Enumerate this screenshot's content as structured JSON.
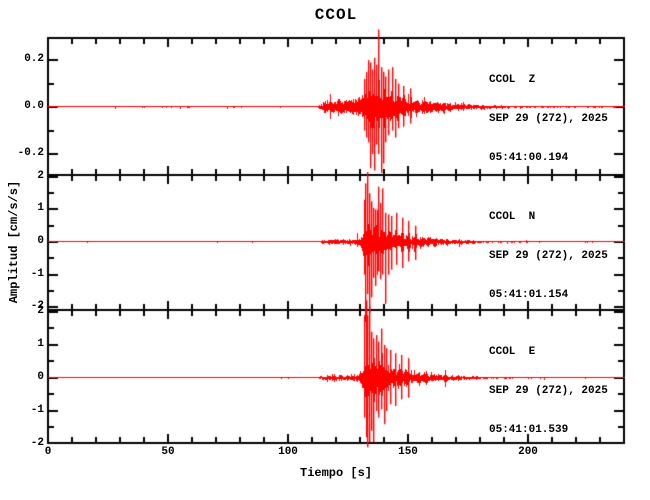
{
  "figure": {
    "background": "#ffffff",
    "frame_color": "#000000",
    "trace_color": "#ff0000"
  },
  "chart_data": {
    "type": "line",
    "subtype": "seismogram-3-component",
    "title": "CCOL",
    "xlabel": "Tiempo [s]",
    "ylabel": "Amplitud [cm/s/s]",
    "x_range": [
      0,
      240
    ],
    "x_major_ticks": [
      0,
      50,
      100,
      150,
      200
    ],
    "x_tick_labels": [
      "0",
      "50",
      "100",
      "150",
      "200"
    ],
    "x_minor_tick_interval": 10,
    "grid": false,
    "legend": "none",
    "line_color": "#ff0000",
    "panels": [
      {
        "station": "CCOL",
        "channel": "Z",
        "name_label": "CCOL  Z",
        "date_label": "SEP 29 (272), 2025",
        "time_label": "05:41:00.194",
        "y_range": [
          -0.289,
          0.294
        ],
        "y_major_ticks": [
          -0.2,
          0.0,
          0.2
        ],
        "y_tick_labels": [
          "-0.2",
          "0.0",
          "0.2"
        ],
        "y_minor_tick_interval": 0.1,
        "peak_amplitude": 0.33,
        "p_arrival_s": 113,
        "s_arrival_s": 131.5,
        "envelope_t_amp": [
          [
            0,
            0.004
          ],
          [
            112,
            0.004
          ],
          [
            113.5,
            0.02
          ],
          [
            115,
            0.05
          ],
          [
            121,
            0.045
          ],
          [
            127,
            0.055
          ],
          [
            130,
            0.07
          ],
          [
            131.5,
            0.11
          ],
          [
            133,
            0.15
          ],
          [
            137,
            0.16
          ],
          [
            140,
            0.12
          ],
          [
            144,
            0.09
          ],
          [
            149,
            0.07
          ],
          [
            155,
            0.05
          ],
          [
            162,
            0.035
          ],
          [
            170,
            0.025
          ],
          [
            180,
            0.015
          ],
          [
            190,
            0.009
          ],
          [
            205,
            0.006
          ],
          [
            240,
            0.005
          ]
        ],
        "notable_extremes_t_up_down": [
          [
            131.8,
            0.12,
            -0.1
          ],
          [
            132.6,
            0.15,
            -0.13
          ],
          [
            133.4,
            0.2,
            -0.15
          ],
          [
            134.3,
            0.19,
            -0.26
          ],
          [
            135.1,
            0.16,
            -0.2
          ],
          [
            136.0,
            0.21,
            -0.27
          ],
          [
            136.8,
            0.18,
            -0.16
          ],
          [
            137.7,
            0.33,
            -0.2
          ],
          [
            138.6,
            0.17,
            -0.28
          ],
          [
            139.6,
            0.15,
            -0.24
          ],
          [
            140.5,
            0.13,
            -0.15
          ],
          [
            141.6,
            0.16,
            -0.12
          ],
          [
            143.2,
            0.17,
            -0.1
          ],
          [
            144.5,
            0.12,
            -0.13
          ],
          [
            146,
            0.1,
            -0.09
          ],
          [
            148,
            0.09,
            -0.08
          ],
          [
            151,
            0.08,
            -0.07
          ]
        ]
      },
      {
        "station": "CCOL",
        "channel": "N",
        "name_label": "CCOL  N",
        "date_label": "SEP 29 (272), 2025",
        "time_label": "05:41:01.154",
        "y_range": [
          -2.09,
          2.06
        ],
        "y_major_ticks": [
          -2,
          -1,
          0,
          1,
          2
        ],
        "y_tick_labels": [
          "-2",
          "-1",
          "0",
          "1",
          "2"
        ],
        "y_minor_tick_interval": 0.5,
        "peak_amplitude": 2.45,
        "p_arrival_s": 113,
        "s_arrival_s": 131.5,
        "envelope_t_amp": [
          [
            0,
            0.02
          ],
          [
            112,
            0.02
          ],
          [
            114,
            0.08
          ],
          [
            118,
            0.12
          ],
          [
            124,
            0.12
          ],
          [
            128,
            0.15
          ],
          [
            130.5,
            0.3
          ],
          [
            131.8,
            0.9
          ],
          [
            133,
            1.2
          ],
          [
            135,
            1.0
          ],
          [
            137,
            0.8
          ],
          [
            140,
            0.6
          ],
          [
            143,
            0.5
          ],
          [
            147,
            0.42
          ],
          [
            152,
            0.33
          ],
          [
            158,
            0.25
          ],
          [
            164,
            0.17
          ],
          [
            172,
            0.1
          ],
          [
            180,
            0.06
          ],
          [
            190,
            0.04
          ],
          [
            205,
            0.027
          ],
          [
            240,
            0.022
          ]
        ],
        "notable_extremes_t_up_down": [
          [
            131.6,
            1.3,
            -1.0
          ],
          [
            132.2,
            1.8,
            -2.45
          ],
          [
            132.9,
            2.15,
            -1.6
          ],
          [
            133.6,
            1.5,
            -2.2
          ],
          [
            134.4,
            1.25,
            -1.7
          ],
          [
            135.3,
            1.05,
            -1.1
          ],
          [
            136.3,
            1.0,
            -1.35
          ],
          [
            137.3,
            1.7,
            -0.9
          ],
          [
            138.2,
            1.2,
            -1.15
          ],
          [
            139.2,
            1.65,
            -1.0
          ],
          [
            140.3,
            0.9,
            -1.9
          ],
          [
            141.5,
            0.85,
            -1.0
          ],
          [
            143,
            0.8,
            -0.85
          ],
          [
            145,
            0.9,
            -0.7
          ],
          [
            147.5,
            0.75,
            -0.8
          ],
          [
            150,
            0.65,
            -0.6
          ],
          [
            153,
            0.5,
            -0.55
          ]
        ]
      },
      {
        "station": "CCOL",
        "channel": "E",
        "name_label": "CCOL  E",
        "date_label": "SEP 29 (272), 2025",
        "time_label": "05:41:01.539",
        "y_range": [
          -1.97,
          2.06
        ],
        "y_major_ticks": [
          -2,
          -1,
          0,
          1,
          2
        ],
        "y_tick_labels": [
          "-2",
          "-1",
          "0",
          "1",
          "2"
        ],
        "y_minor_tick_interval": 0.5,
        "peak_amplitude": 2.35,
        "p_arrival_s": 113,
        "s_arrival_s": 131.5,
        "envelope_t_amp": [
          [
            0,
            0.02
          ],
          [
            112,
            0.02
          ],
          [
            114,
            0.09
          ],
          [
            118,
            0.13
          ],
          [
            124,
            0.13
          ],
          [
            128,
            0.16
          ],
          [
            130.5,
            0.35
          ],
          [
            131.8,
            1.0
          ],
          [
            133,
            1.2
          ],
          [
            135,
            1.0
          ],
          [
            137,
            0.85
          ],
          [
            140,
            0.65
          ],
          [
            143,
            0.5
          ],
          [
            147,
            0.4
          ],
          [
            152,
            0.32
          ],
          [
            158,
            0.24
          ],
          [
            164,
            0.16
          ],
          [
            172,
            0.1
          ],
          [
            180,
            0.06
          ],
          [
            190,
            0.04
          ],
          [
            205,
            0.027
          ],
          [
            240,
            0.022
          ]
        ],
        "notable_extremes_t_up_down": [
          [
            131.7,
            1.9,
            -1.2
          ],
          [
            132.4,
            2.35,
            -1.8
          ],
          [
            133.1,
            1.9,
            -2.1
          ],
          [
            133.9,
            2.2,
            -1.95
          ],
          [
            134.7,
            1.4,
            -1.6
          ],
          [
            135.6,
            1.2,
            -1.95
          ],
          [
            136.6,
            1.3,
            -1.0
          ],
          [
            137.6,
            1.1,
            -1.2
          ],
          [
            138.7,
            1.5,
            -0.95
          ],
          [
            139.8,
            1.0,
            -1.4
          ],
          [
            141,
            0.9,
            -1.0
          ],
          [
            142.5,
            0.85,
            -0.8
          ],
          [
            144.5,
            0.75,
            -0.85
          ],
          [
            147,
            0.7,
            -0.65
          ],
          [
            150,
            0.6,
            -0.6
          ]
        ]
      }
    ]
  }
}
